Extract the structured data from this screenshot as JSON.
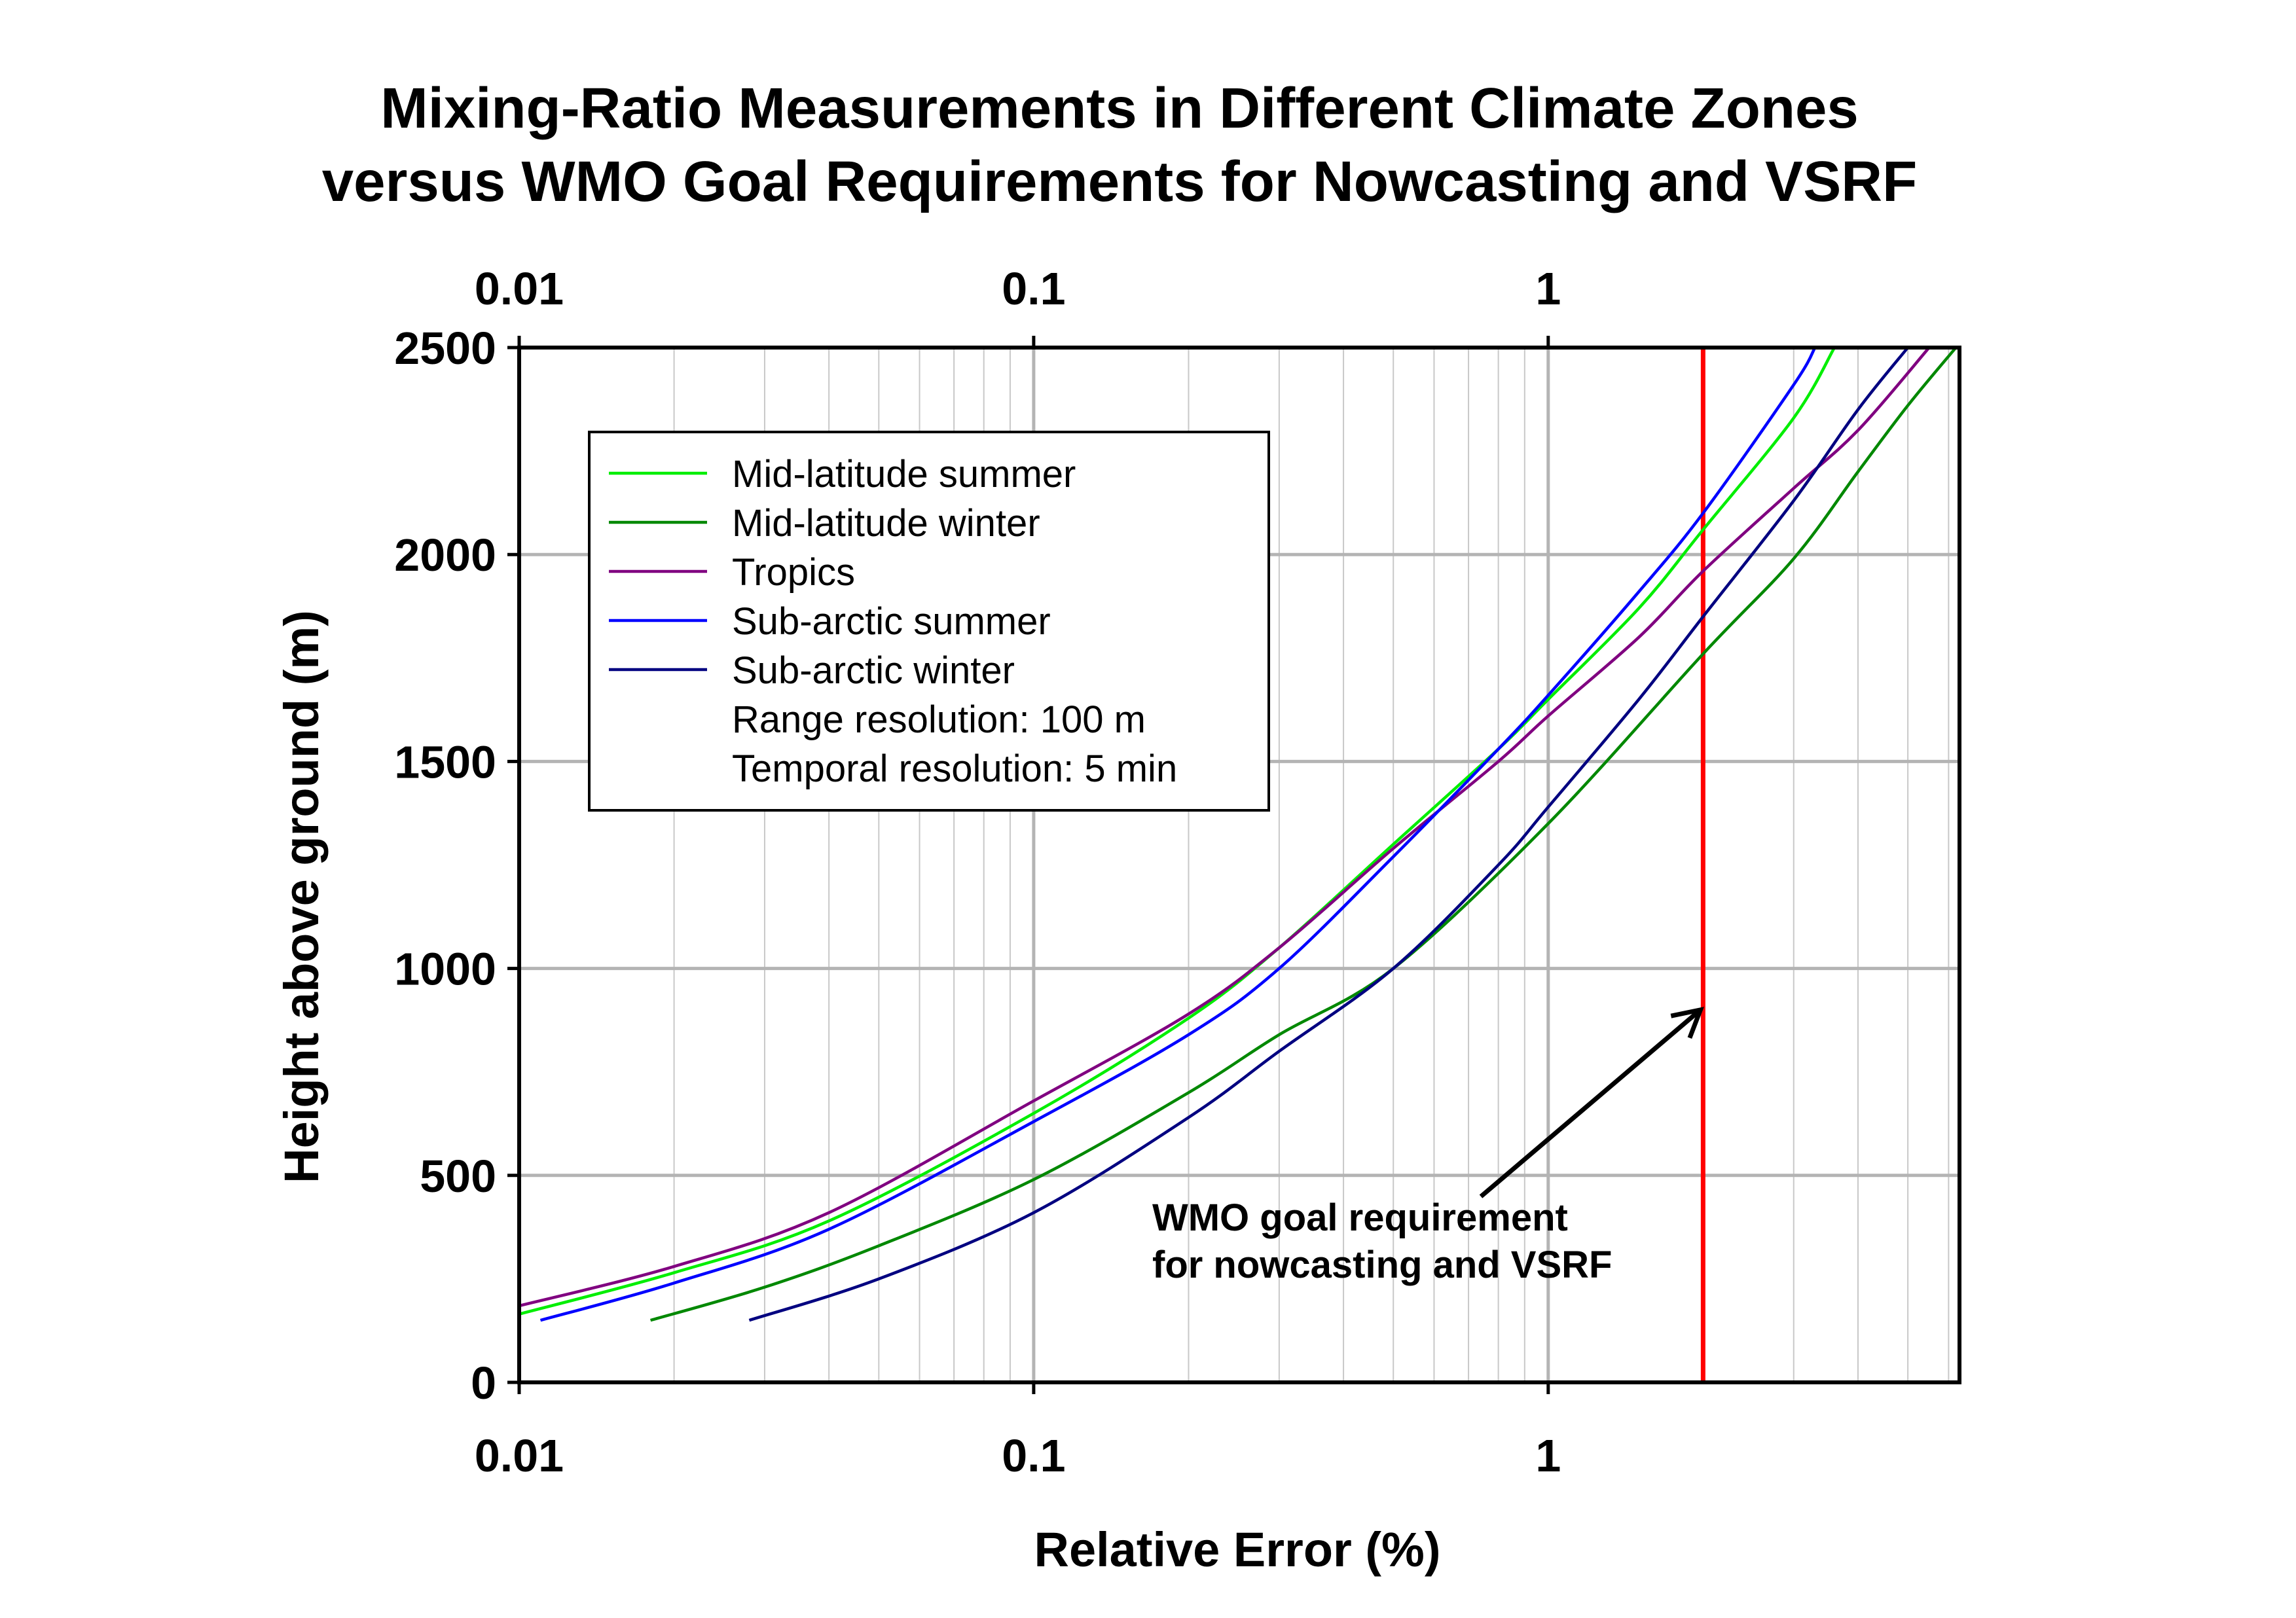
{
  "chart_data": {
    "type": "line",
    "title_lines": [
      "Mixing-Ratio Measurements in Different Climate Zones",
      "versus WMO Goal Requirements for Nowcasting and VSRF"
    ],
    "xlabel": "Relative Error (%)",
    "ylabel": "Height above ground (m)",
    "x_scale": "log",
    "xlim": [
      0.01,
      6.3
    ],
    "ylim": [
      0,
      2500
    ],
    "x_ticks": [
      "0.01",
      "0.1",
      "1"
    ],
    "x_tick_values": [
      0.01,
      0.1,
      1
    ],
    "x_ticks_top": [
      "0.01",
      "0.1",
      "1"
    ],
    "y_ticks": [
      "0",
      "500",
      "1000",
      "1500",
      "2000",
      "2500"
    ],
    "y_tick_values": [
      0,
      500,
      1000,
      1500,
      2000,
      2500
    ],
    "grid": true,
    "legend_position": "top-left",
    "legend_notes": [
      "Range resolution: 100 m",
      "Temporal resolution: 5 min"
    ],
    "series": [
      {
        "name": "Mid-latitude summer",
        "color": "#00ee00",
        "x": [
          0.01,
          0.02,
          0.04,
          0.1,
          0.2,
          0.3,
          0.5,
          0.8,
          1.0,
          1.5,
          2.0,
          3.0,
          3.6
        ],
        "y": [
          165,
          265,
          390,
          650,
          880,
          1050,
          1300,
          1530,
          1650,
          1870,
          2060,
          2330,
          2500
        ]
      },
      {
        "name": "Mid-latitude winter",
        "color": "#008800",
        "x": [
          0.018,
          0.03,
          0.05,
          0.1,
          0.2,
          0.3,
          0.5,
          1.0,
          2.0,
          3.0,
          4.0,
          5.0,
          6.2
        ],
        "y": [
          150,
          230,
          330,
          490,
          700,
          840,
          1000,
          1350,
          1760,
          1990,
          2200,
          2360,
          2500
        ]
      },
      {
        "name": "Tropics",
        "color": "#800080",
        "x": [
          0.01,
          0.02,
          0.04,
          0.1,
          0.2,
          0.3,
          0.5,
          0.8,
          1.0,
          1.5,
          2.0,
          3.0,
          4.0,
          5.5
        ],
        "y": [
          185,
          280,
          410,
          680,
          890,
          1050,
          1290,
          1500,
          1610,
          1800,
          1960,
          2160,
          2300,
          2500
        ]
      },
      {
        "name": "Sub-arctic summer",
        "color": "#0000ff",
        "x": [
          0.011,
          0.02,
          0.04,
          0.1,
          0.2,
          0.3,
          0.5,
          0.8,
          1.0,
          1.5,
          2.0,
          3.0,
          3.3
        ],
        "y": [
          150,
          240,
          370,
          630,
          840,
          1000,
          1270,
          1530,
          1660,
          1910,
          2100,
          2410,
          2500
        ]
      },
      {
        "name": "Sub-arctic winter",
        "color": "#000080",
        "x": [
          0.028,
          0.05,
          0.1,
          0.2,
          0.3,
          0.5,
          0.8,
          1.0,
          1.5,
          2.0,
          3.0,
          4.0,
          5.0
        ],
        "y": [
          150,
          250,
          410,
          640,
          800,
          1000,
          1250,
          1390,
          1650,
          1850,
          2130,
          2350,
          2500
        ]
      }
    ],
    "reference_line": {
      "x": 2,
      "color": "#ff0000",
      "annotation_lines": [
        "WMO goal requirement",
        "for nowcasting and VSRF"
      ],
      "arrow_to_y": 900
    }
  }
}
